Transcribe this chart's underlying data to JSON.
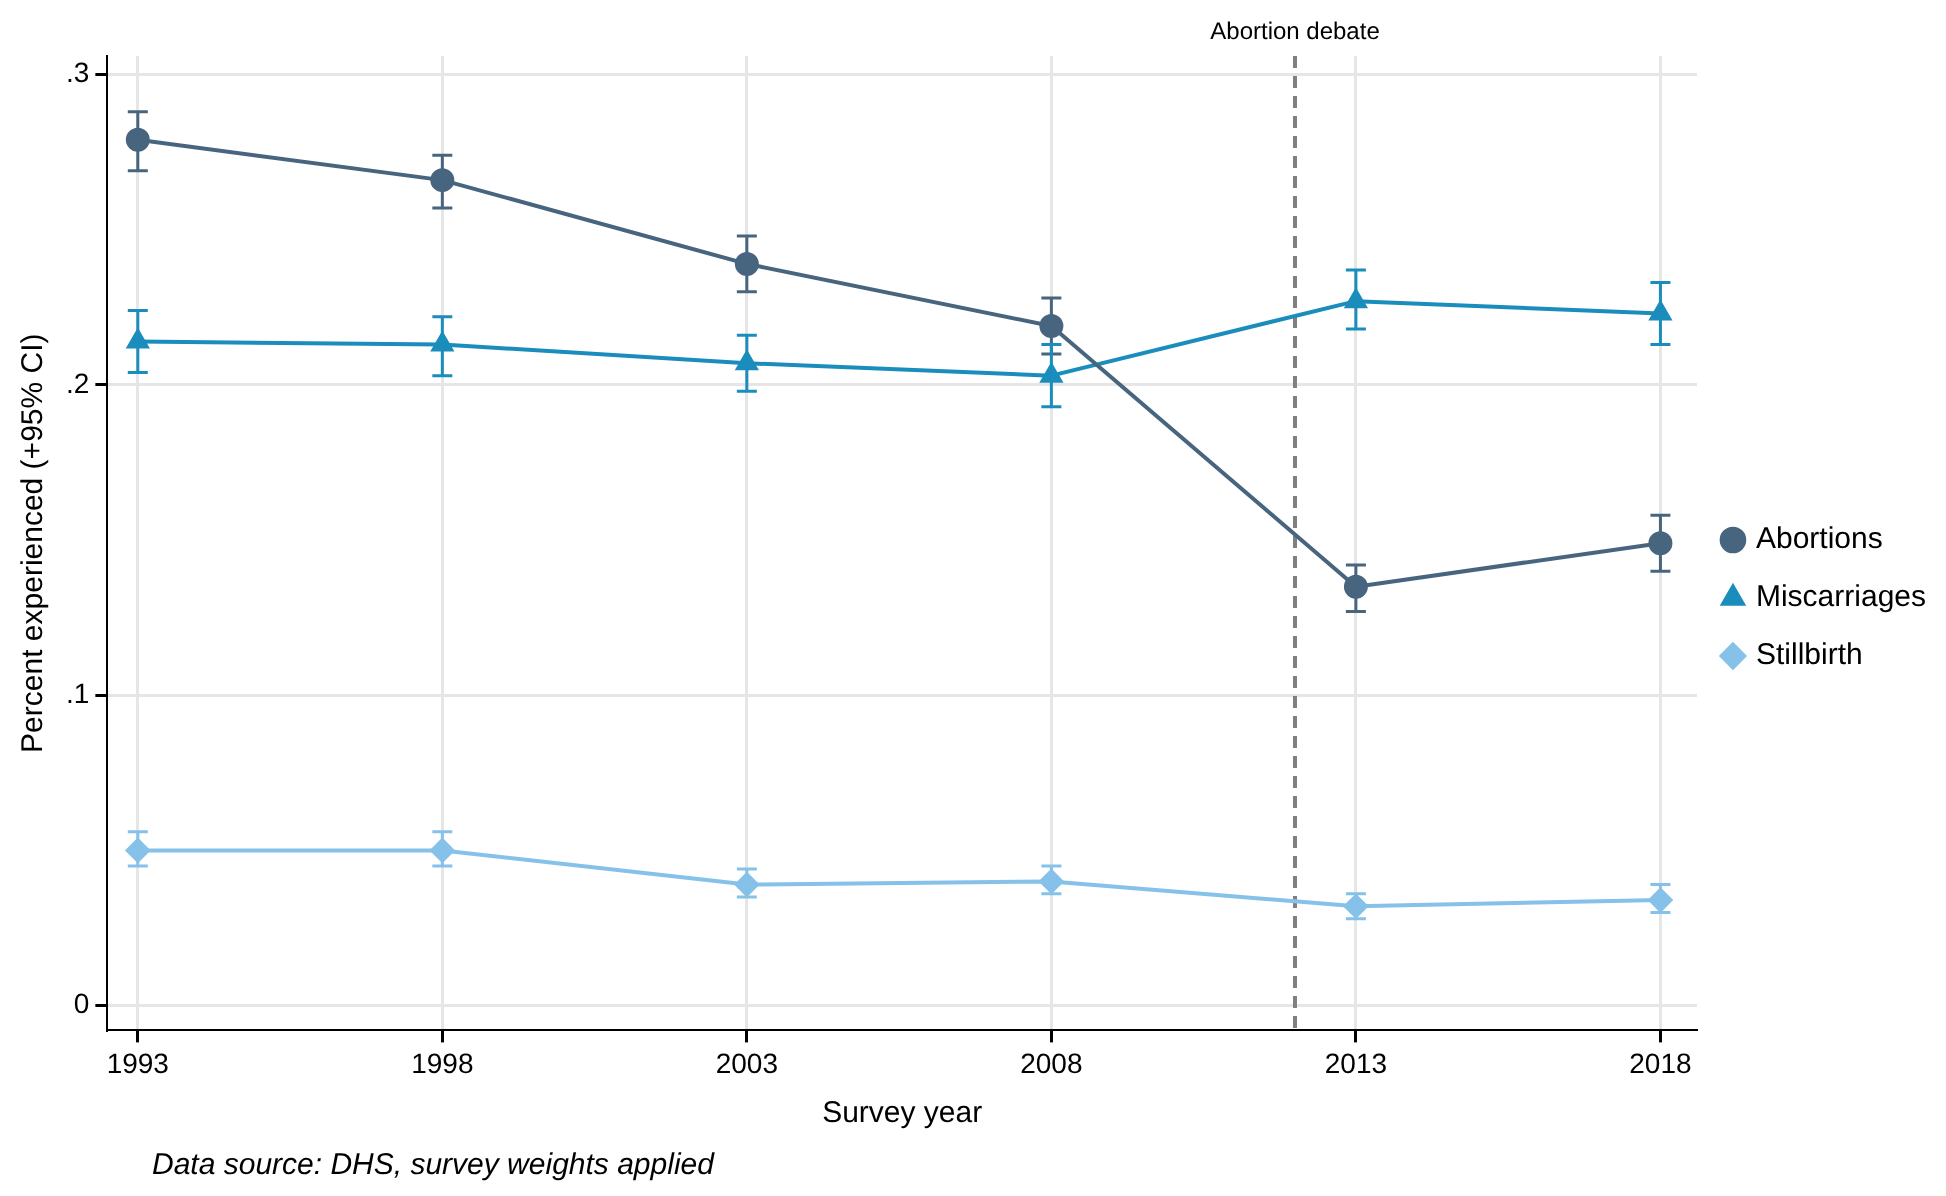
{
  "chart_data": {
    "type": "line",
    "xlabel": "Survey year",
    "ylabel": "Percent experienced (+95% CI)",
    "x": [
      1993,
      1998,
      2003,
      2008,
      2013,
      2018
    ],
    "series": [
      {
        "name": "Abortions",
        "color": "#48657f",
        "marker": "circle",
        "values": [
          0.279,
          0.266,
          0.239,
          0.219,
          0.135,
          0.149
        ],
        "errors": [
          [
            0.269,
            0.288
          ],
          [
            0.257,
            0.274
          ],
          [
            0.23,
            0.248
          ],
          [
            0.21,
            0.228
          ],
          [
            0.127,
            0.142
          ],
          [
            0.14,
            0.158
          ]
        ]
      },
      {
        "name": "Miscarriages",
        "color": "#1a8dbd",
        "marker": "triangle",
        "values": [
          0.214,
          0.213,
          0.207,
          0.203,
          0.227,
          0.223
        ],
        "errors": [
          [
            0.204,
            0.224
          ],
          [
            0.203,
            0.222
          ],
          [
            0.198,
            0.216
          ],
          [
            0.193,
            0.213
          ],
          [
            0.218,
            0.237
          ],
          [
            0.213,
            0.233
          ]
        ]
      },
      {
        "name": "Stillbirth",
        "color": "#85c1e9",
        "marker": "diamond",
        "values": [
          0.05,
          0.05,
          0.039,
          0.04,
          0.032,
          0.034
        ],
        "errors": [
          [
            0.045,
            0.056
          ],
          [
            0.045,
            0.056
          ],
          [
            0.035,
            0.044
          ],
          [
            0.036,
            0.045
          ],
          [
            0.028,
            0.036
          ],
          [
            0.03,
            0.039
          ]
        ]
      }
    ],
    "xlim": [
      1992.5,
      2018.6
    ],
    "xticks": [
      1993,
      1998,
      2003,
      2008,
      2013,
      2018
    ],
    "ylim": [
      -0.008,
      0.306
    ],
    "yticks": [
      {
        "value": 0,
        "label": "0"
      },
      {
        "value": 0.1,
        "label": ".1"
      },
      {
        "value": 0.2,
        "label": ".2"
      },
      {
        "value": 0.3,
        "label": ".3"
      }
    ],
    "grid": true,
    "legend": "right",
    "line_style": "solid",
    "ref_lines": [
      {
        "axis": "x",
        "value": 2012,
        "label": "Abortion debate",
        "color": "#808080",
        "line_style": "dashed"
      }
    ],
    "annotations": [
      "Data source: DHS, survey weights applied"
    ]
  }
}
